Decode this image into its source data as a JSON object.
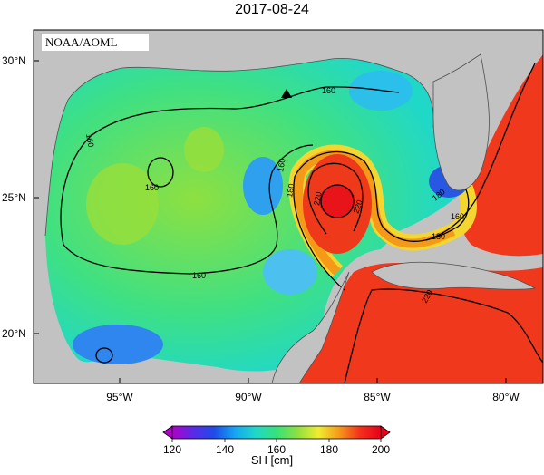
{
  "title": "2017-08-24",
  "watermark": "NOAA/AOML",
  "lat_labels": [
    "30°N",
    "25°N",
    "20°N"
  ],
  "lon_labels": [
    "95°W",
    "90°W",
    "85°W",
    "80°W"
  ],
  "contour_labels": [
    "160",
    "160",
    "160",
    "160",
    "180",
    "220",
    "220",
    "160",
    "180",
    "160",
    "180",
    "220"
  ],
  "colorbar": {
    "title": "SH [cm]",
    "ticks": [
      "120",
      "140",
      "160",
      "180",
      "200"
    ],
    "colors": [
      "#b000c8",
      "#5a2ae6",
      "#1f4be8",
      "#14a6f2",
      "#20d8c8",
      "#36e27a",
      "#8ee040",
      "#f0ec30",
      "#f59a18",
      "#f4301c",
      "#e6001a"
    ]
  },
  "colors": {
    "land": "#c2c2c2",
    "deep_warm": "#f0281c",
    "loop_current": "#e8641a"
  },
  "marker": "triangle"
}
